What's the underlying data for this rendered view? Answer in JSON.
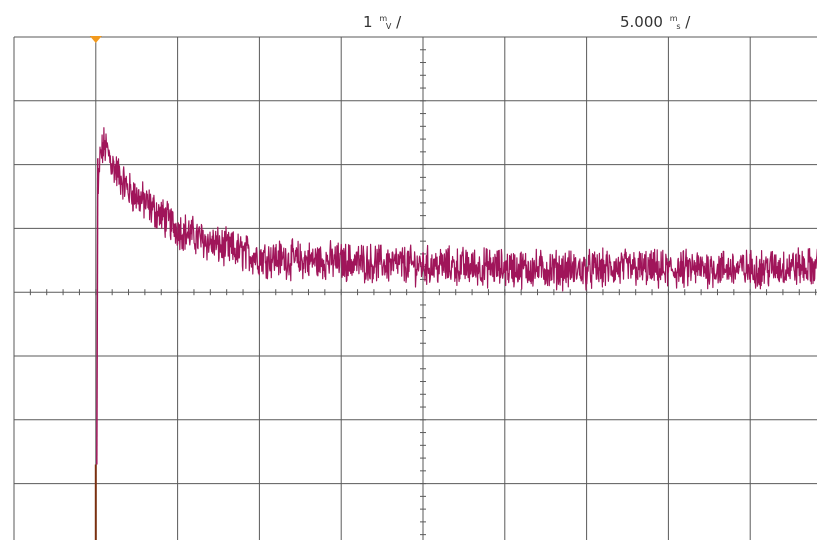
{
  "scope": {
    "volts_per_div": {
      "value": "1",
      "prefix": "m",
      "unit": "V",
      "suffix": "/"
    },
    "time_per_div": {
      "value": "5.000",
      "prefix": "m",
      "unit": "s",
      "suffix": "/"
    }
  },
  "colors": {
    "background": "#ffffff",
    "grid": "#5a5a5a",
    "trace": "#a0155a",
    "trigger_marker": "#f29a1e",
    "pre_trigger": "#7a3010"
  },
  "chart_data": {
    "type": "line",
    "xlim": [
      -1,
      9
    ],
    "ylim": [
      -4,
      4
    ],
    "x_divisions": 10,
    "y_divisions": 8,
    "grid": true,
    "trigger_x": 0,
    "series": [
      {
        "x": [
          0,
          0.02,
          0.05,
          0.1,
          0.15,
          0.2,
          0.3,
          0.4,
          0.6,
          0.8,
          1.0,
          1.25,
          1.5,
          2.0,
          2.5,
          3.0,
          3.5,
          4.0,
          4.5,
          5.0,
          5.5,
          6.0,
          6.5,
          7.0,
          7.5,
          8.0,
          8.5,
          8.9
        ],
        "y": [
          -2.7,
          1.2,
          2.1,
          2.3,
          2.2,
          2.0,
          1.8,
          1.6,
          1.4,
          1.2,
          1.0,
          0.85,
          0.72,
          0.55,
          0.5,
          0.48,
          0.45,
          0.42,
          0.4,
          0.38,
          0.36,
          0.35,
          0.38,
          0.34,
          0.38,
          0.36,
          0.4,
          0.38
        ],
        "noise_pp": 0.5
      }
    ]
  }
}
